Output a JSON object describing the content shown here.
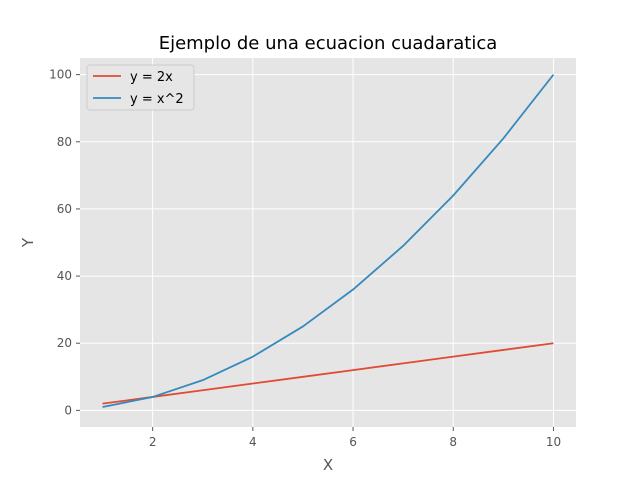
{
  "chart_data": {
    "type": "line",
    "title": "Ejemplo de una ecuacion cuadaratica",
    "xlabel": "X",
    "ylabel": "Y",
    "x": [
      1,
      2,
      3,
      4,
      5,
      6,
      7,
      8,
      9,
      10
    ],
    "xlim": [
      0.55,
      10.45
    ],
    "ylim": [
      -4.95,
      104.95
    ],
    "xticks": [
      2,
      4,
      6,
      8,
      10
    ],
    "yticks": [
      0,
      20,
      40,
      60,
      80,
      100
    ],
    "grid": true,
    "legend_position": "upper-left",
    "style": {
      "background": "#e5e5e5",
      "grid_color": "#ffffff"
    },
    "series": [
      {
        "name": "y = 2x",
        "color": "#e24a33",
        "values": [
          2,
          4,
          6,
          8,
          10,
          12,
          14,
          16,
          18,
          20
        ]
      },
      {
        "name": "y = x^2",
        "color": "#348abd",
        "values": [
          1,
          4,
          9,
          16,
          25,
          36,
          49,
          64,
          81,
          100
        ]
      }
    ]
  }
}
